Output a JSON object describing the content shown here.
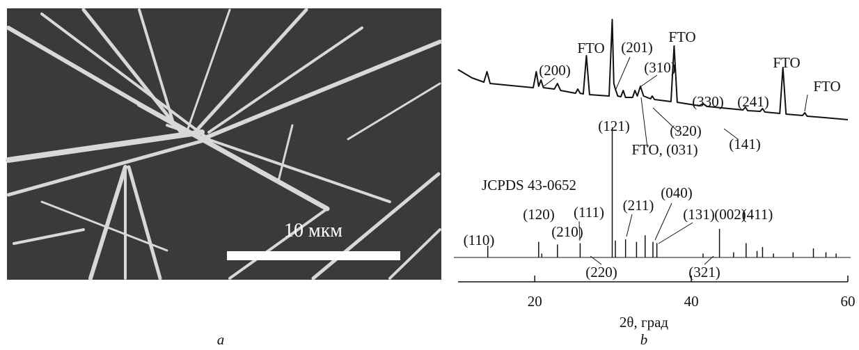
{
  "panel_a": {
    "scale_bar_label": "10 мкм",
    "caption": "a"
  },
  "chart_data": [
    {
      "type": "line",
      "color": "#111111",
      "x": [
        10.2,
        12,
        13.5,
        13.9,
        14.3,
        19.8,
        20.2,
        20.5,
        20.8,
        21.1,
        22.5,
        22.9,
        23.3,
        25.2,
        25.5,
        25.8,
        26.2,
        26.6,
        27.0,
        29.5,
        29.9,
        30.1,
        30.3,
        30.6,
        31.0,
        31.3,
        31.6,
        32.5,
        32.8,
        33.1,
        33.5,
        33.9,
        34.8,
        35.0,
        35.3,
        37.4,
        37.8,
        38.2,
        41,
        41.5,
        42,
        46.6,
        46.9,
        47.2,
        48.8,
        49.1,
        49.4,
        51.3,
        51.7,
        52.1,
        54.2,
        54.5,
        54.8,
        57,
        60
      ],
      "values": [
        90,
        78,
        72,
        87,
        70,
        64,
        87,
        66,
        75,
        64,
        62,
        70,
        60,
        56,
        62,
        56,
        55,
        110,
        54,
        52,
        162,
        70,
        62,
        52,
        51,
        60,
        50,
        50,
        60,
        52,
        66,
        52,
        48,
        52,
        47,
        44,
        124,
        43,
        38,
        41,
        37,
        32,
        36,
        31,
        30,
        34,
        29,
        27,
        93,
        26,
        24,
        28,
        23,
        21,
        18
      ],
      "annotations": [
        "(200)",
        "FTO",
        "(201)",
        "(310)",
        "FTO",
        "FTO",
        "FTO",
        "(330)",
        "(241)",
        "(121)",
        "FTO, (031)",
        "(320)",
        "(141)"
      ]
    },
    {
      "type": "stick",
      "color": "#111111",
      "title": "JCPDS 43-0652",
      "x": [
        14.0,
        20.5,
        20.9,
        22.9,
        25.8,
        29.9,
        30.3,
        31.6,
        33.0,
        34.1,
        35.1,
        35.6,
        41.5,
        43.6,
        45.4,
        47.0,
        48.4,
        49.1,
        50.5,
        53.0,
        55.6,
        57.2,
        58.5
      ],
      "values": [
        9,
        12,
        3,
        10,
        11,
        100,
        13,
        14,
        12,
        17,
        12,
        11,
        3,
        22,
        4,
        11,
        5,
        8,
        3,
        4,
        7,
        4,
        3
      ],
      "annotations": [
        "(110)",
        "(120)",
        "(210)",
        "(111)",
        "(211)",
        "(040)",
        "(131)",
        "(002)",
        "(411)",
        "(220)",
        "(321)"
      ],
      "xlim": [
        10.2,
        60
      ],
      "xticks": [
        20,
        40,
        60
      ],
      "xlabel": "2θ, град",
      "caption": "b"
    }
  ]
}
